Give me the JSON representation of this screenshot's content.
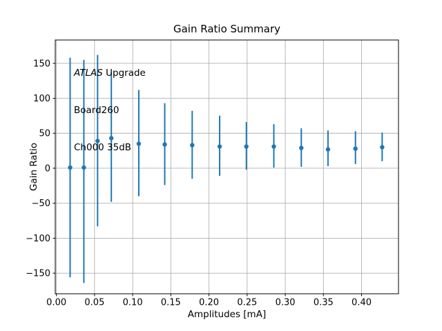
{
  "annotation": {
    "line1_italic": "ATLAS",
    "line1_rest": " Upgrade",
    "line2": "Board260",
    "line3": "Ch000 35dB"
  },
  "chart_data": {
    "type": "scatter",
    "title": "Gain Ratio Summary",
    "xlabel": "Amplitudes [mA]",
    "ylabel": "Gain Ratio",
    "annotation_lines": [
      "ATLAS Upgrade",
      "Board260",
      "Ch000 35dB"
    ],
    "series": [
      {
        "name": "gain-ratio-errorbars",
        "marker": "circle",
        "x": [
          0.018,
          0.036,
          0.054,
          0.072,
          0.108,
          0.142,
          0.178,
          0.214,
          0.249,
          0.285,
          0.321,
          0.356,
          0.392,
          0.427
        ],
        "y": [
          1,
          1,
          39,
          43,
          35,
          34,
          33,
          31,
          31,
          31,
          29,
          27,
          28,
          30
        ],
        "y_low": [
          -156,
          -164,
          -83,
          -48,
          -40,
          -24,
          -15,
          -11,
          -2,
          1,
          2,
          3,
          6,
          10
        ],
        "y_high": [
          158,
          155,
          162,
          137,
          112,
          93,
          82,
          75,
          66,
          63,
          57,
          54,
          53,
          51
        ]
      }
    ],
    "xticks": [
      0.0,
      0.05,
      0.1,
      0.15,
      0.2,
      0.25,
      0.3,
      0.35,
      0.4
    ],
    "xtick_labels": [
      "0.00",
      "0.05",
      "0.10",
      "0.15",
      "0.20",
      "0.25",
      "0.30",
      "0.35",
      "0.40"
    ],
    "yticks": [
      -150,
      -100,
      -50,
      0,
      50,
      100,
      150
    ],
    "ytick_labels": [
      "−150",
      "−100",
      "−50",
      "0",
      "50",
      "100",
      "150"
    ],
    "xlim": [
      -0.0015,
      0.4484
    ],
    "ylim": [
      -179.4,
      183.3
    ],
    "grid": true,
    "legend": "none",
    "colors": {
      "series": "#1f77b4",
      "grid": "#b0b0b0",
      "frame": "#000000",
      "text": "#000000",
      "background": "#ffffff"
    }
  }
}
